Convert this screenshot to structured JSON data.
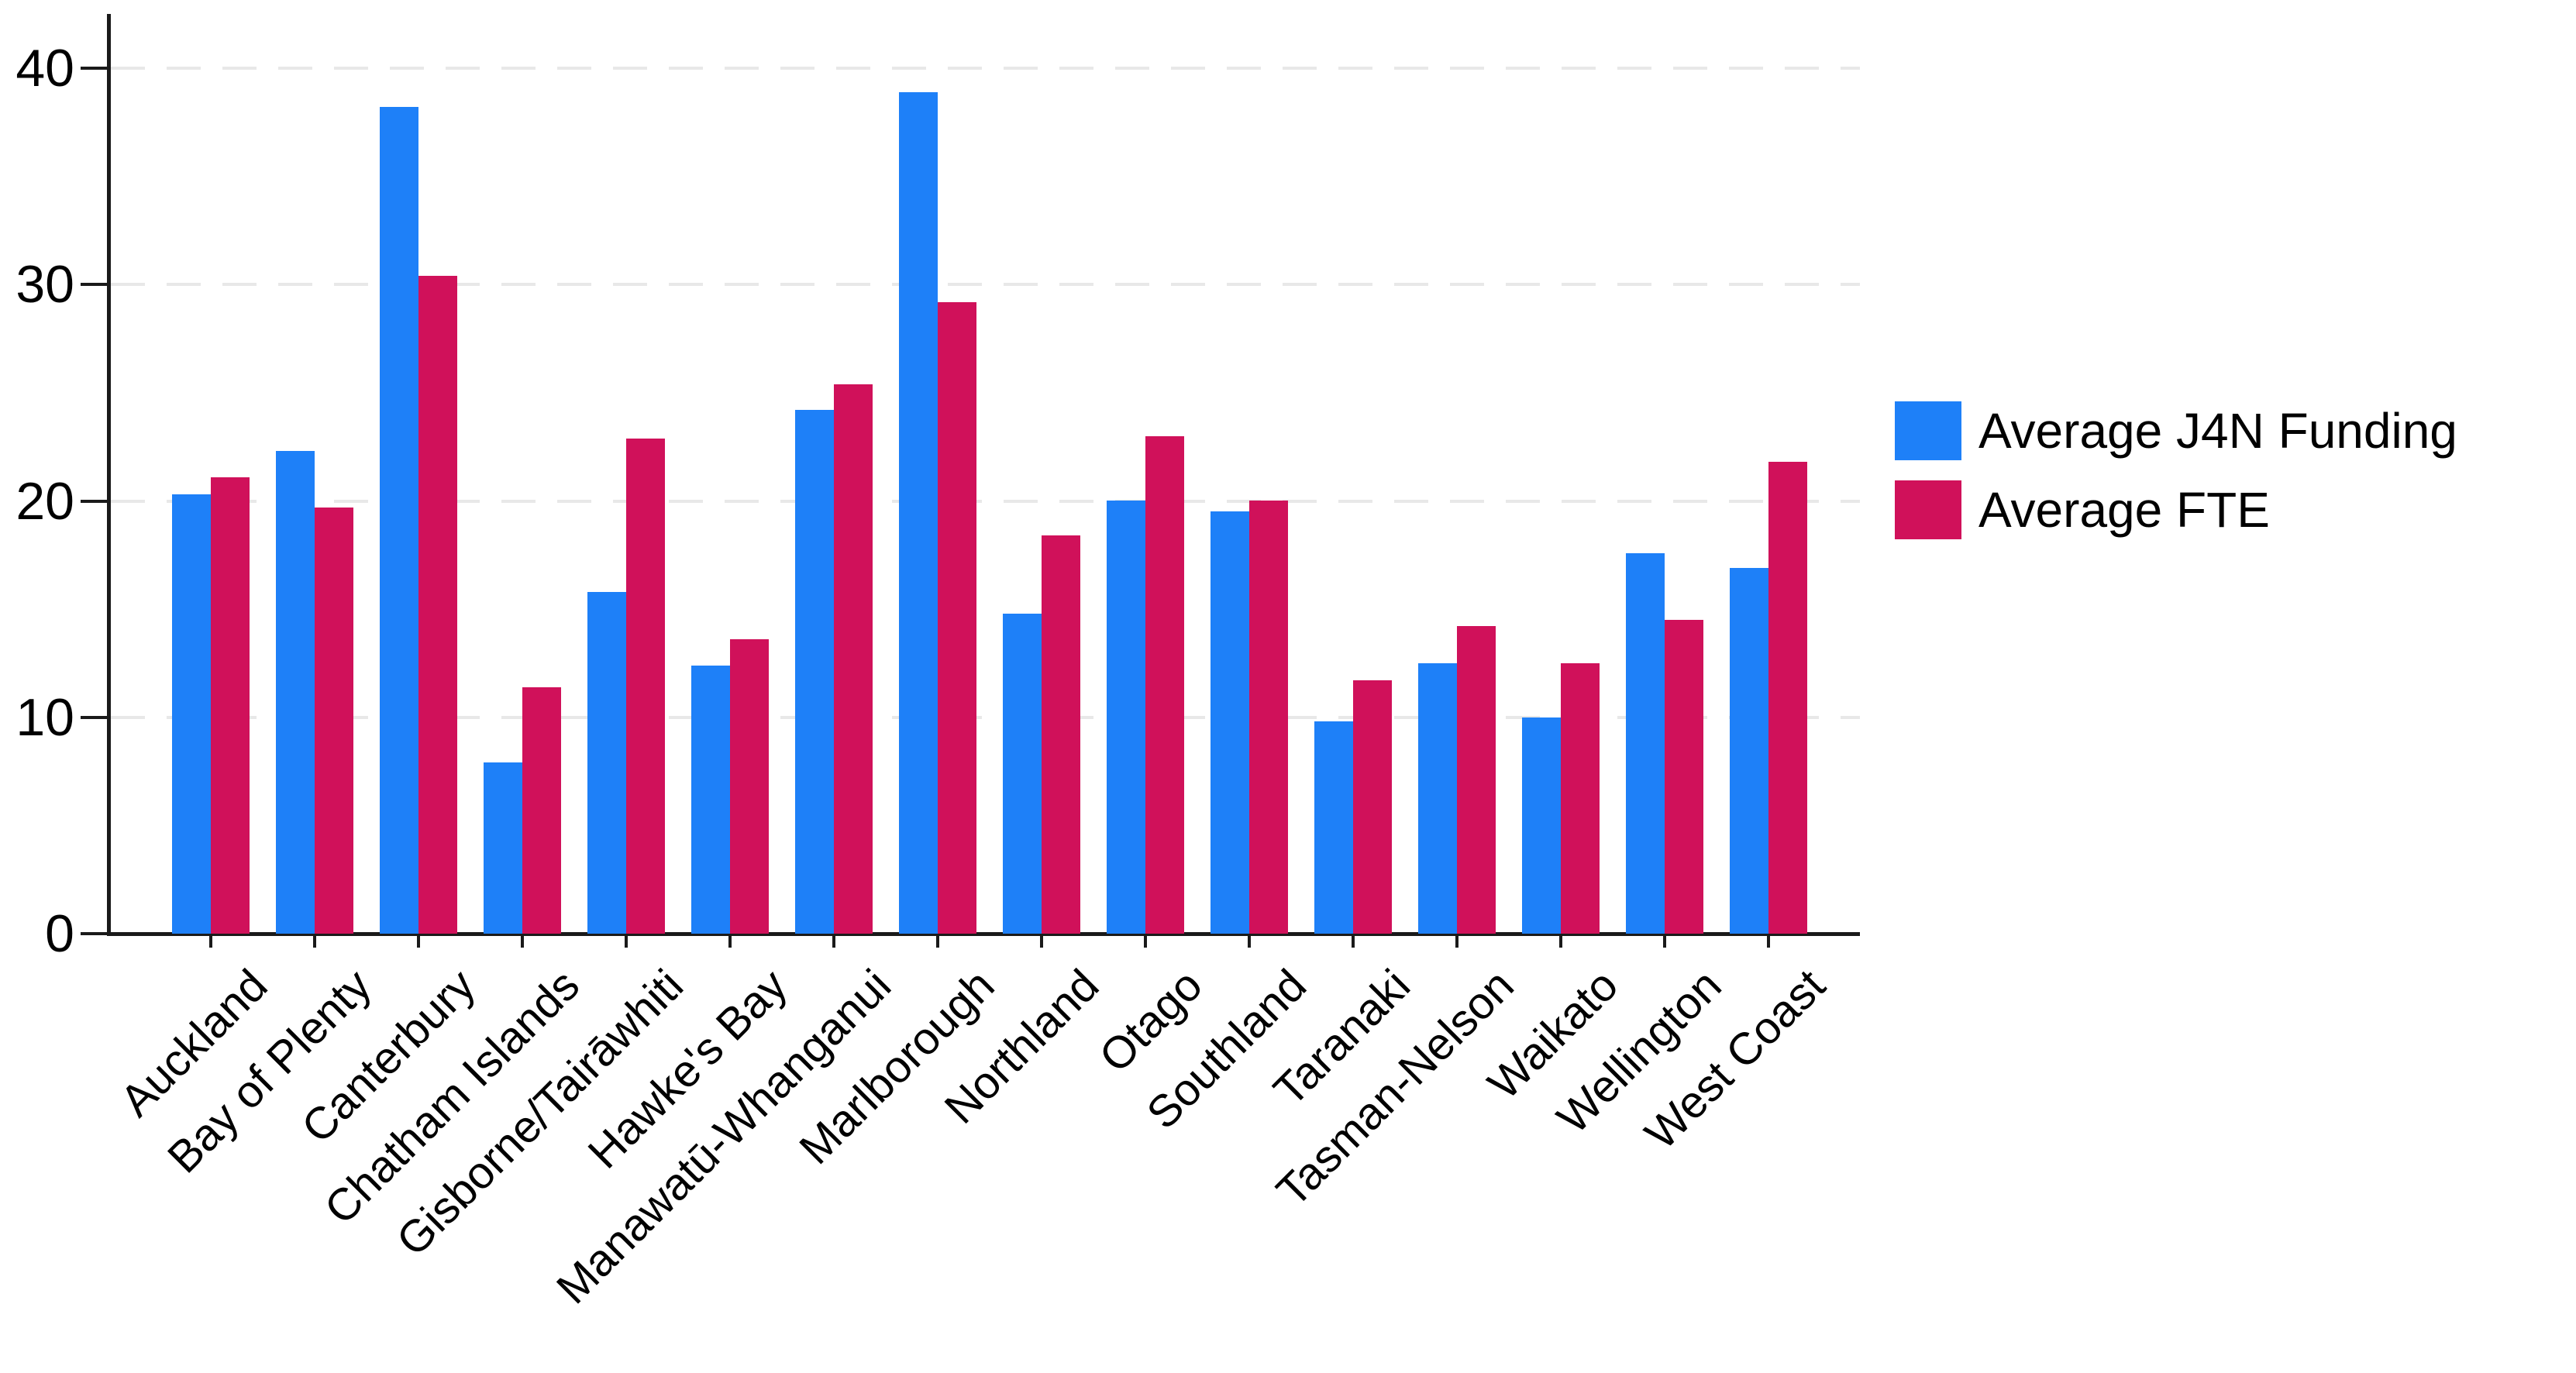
{
  "chart_data": {
    "type": "bar",
    "title": "",
    "xlabel": "",
    "ylabel": "",
    "categories": [
      "Auckland",
      "Bay of Plenty",
      "Canterbury",
      "Chatham Islands",
      "Gisborne/Tairāwhiti",
      "Hawke's Bay",
      "Manawatū-Whanganui",
      "Marlborough",
      "Northland",
      "Otago",
      "Southland",
      "Taranaki",
      "Tasman-Nelson",
      "Waikato",
      "Wellington",
      "West Coast"
    ],
    "series": [
      {
        "name": "Average J4N Funding",
        "color": "#1E80F8",
        "values": [
          20.3,
          22.3,
          38.2,
          7.9,
          15.8,
          12.4,
          24.2,
          38.9,
          14.8,
          20.0,
          19.5,
          9.8,
          12.5,
          10.0,
          17.6,
          16.9
        ]
      },
      {
        "name": "Average FTE",
        "color": "#D0115A",
        "values": [
          21.1,
          19.7,
          30.4,
          11.4,
          22.9,
          13.6,
          25.4,
          29.2,
          18.4,
          23.0,
          20.0,
          11.7,
          14.2,
          12.5,
          14.5,
          21.8
        ]
      }
    ],
    "yticks": [
      "0",
      "10",
      "20",
      "30",
      "40"
    ],
    "ylim": [
      0,
      42
    ],
    "grid": "horizontal-dashed",
    "legend_position": "right-of-plot",
    "axis_color": "#1a1a1a",
    "grid_color": "#E8E8E8",
    "background": "#FFFFFF"
  }
}
